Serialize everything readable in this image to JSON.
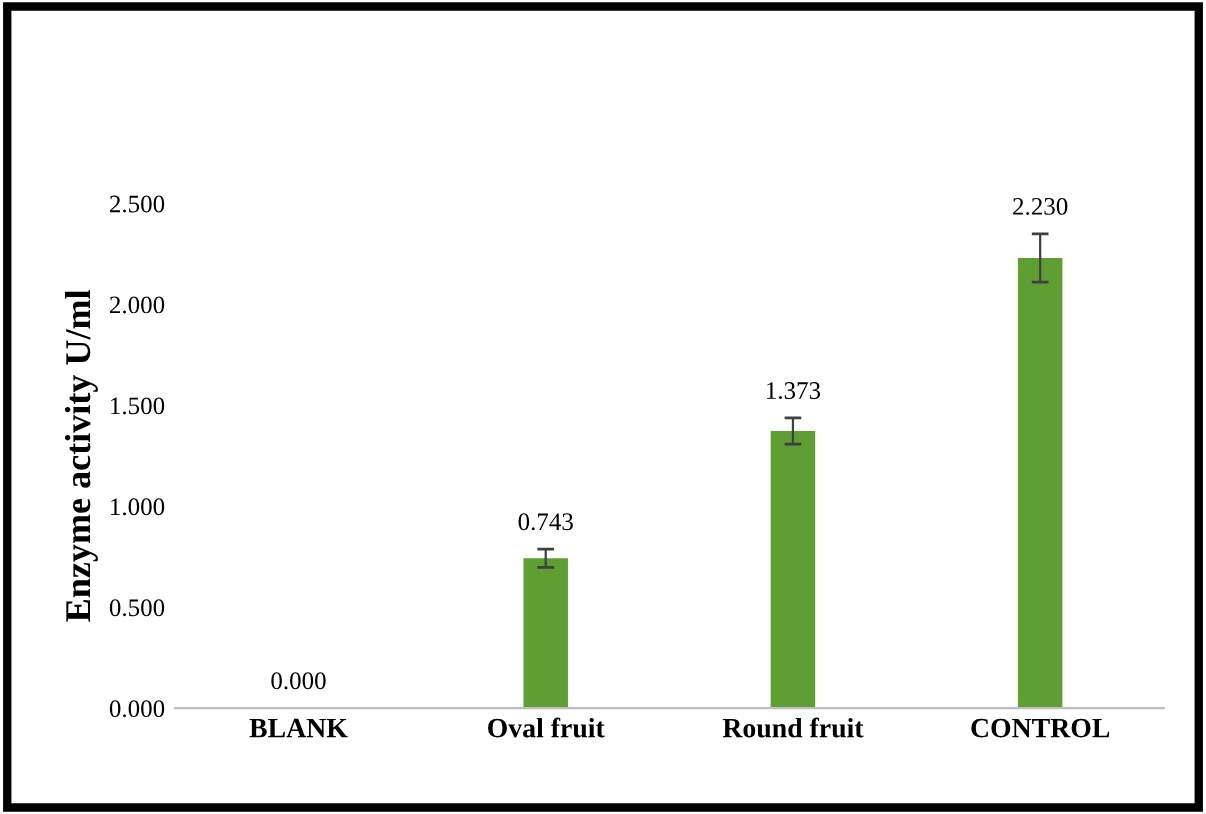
{
  "chart_data": {
    "type": "bar",
    "ylabel": "Enzyme activity U/ml",
    "categories": [
      "BLANK",
      "Oval fruit",
      "Round fruit",
      "CONTROL"
    ],
    "values": [
      0.0,
      0.743,
      1.373,
      2.23
    ],
    "errors": [
      null,
      0.045,
      0.065,
      0.12
    ],
    "value_labels": [
      "0.000",
      "0.743",
      "1.373",
      "2.230"
    ],
    "color": "#5e9e32",
    "ylim": [
      0,
      2.5
    ],
    "yticks": [
      {
        "value": 0,
        "label": "0.000"
      },
      {
        "value": 0.5,
        "label": "0.500"
      },
      {
        "value": 1.0,
        "label": "1.000"
      },
      {
        "value": 1.5,
        "label": "1.500"
      },
      {
        "value": 2.0,
        "label": "2.000"
      },
      {
        "value": 2.5,
        "label": "2.500"
      }
    ],
    "grid": false,
    "legend": false
  }
}
